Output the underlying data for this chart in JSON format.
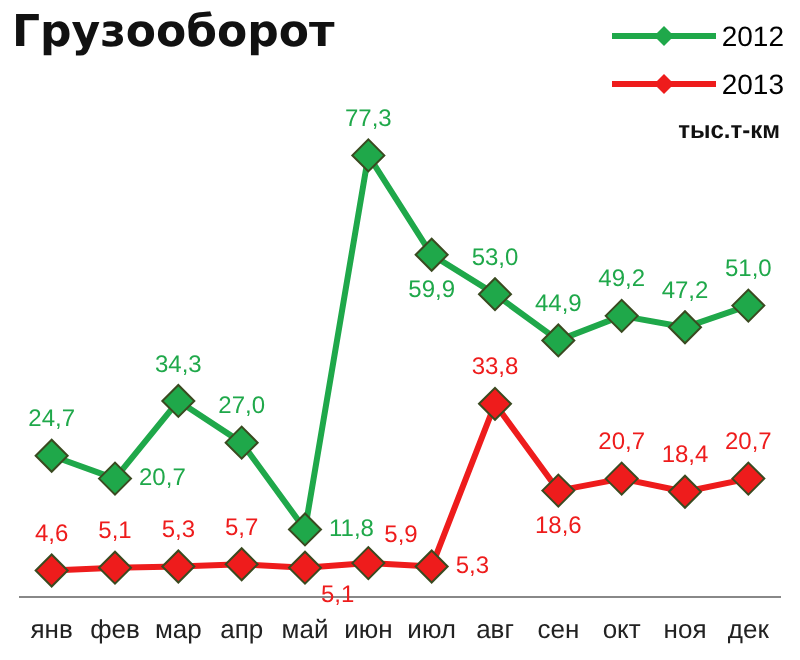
{
  "chart_data": {
    "type": "line",
    "title": "Грузооборот",
    "annotations": [
      "тыс.т-км"
    ],
    "categories": [
      "янв",
      "фев",
      "мар",
      "апр",
      "май",
      "июн",
      "июл",
      "авг",
      "сен",
      "окт",
      "ноя",
      "дек"
    ],
    "series": [
      {
        "name": "2012",
        "color": "#1fa84a",
        "values": [
          24.7,
          20.7,
          34.3,
          27.0,
          11.8,
          77.3,
          59.9,
          53.0,
          44.9,
          49.2,
          47.2,
          51.0
        ],
        "value_labels": [
          "24,7",
          "20,7",
          "34,3",
          "27,0",
          "11,8",
          "77,3",
          "59,9",
          "53,0",
          "44,9",
          "49,2",
          "47,2",
          "51,0"
        ]
      },
      {
        "name": "2013",
        "color": "#ee1c1c",
        "values": [
          4.6,
          5.1,
          5.3,
          5.7,
          5.1,
          5.9,
          5.3,
          33.8,
          18.6,
          20.7,
          18.4,
          20.7
        ],
        "value_labels": [
          "4,6",
          "5,1",
          "5,3",
          "5,7",
          "5,1",
          "5,9",
          "5,3",
          "33,8",
          "18,6",
          "20,7",
          "18,4",
          "20,7"
        ]
      }
    ],
    "marker": "diamond",
    "grid": false,
    "legend": "top right"
  }
}
